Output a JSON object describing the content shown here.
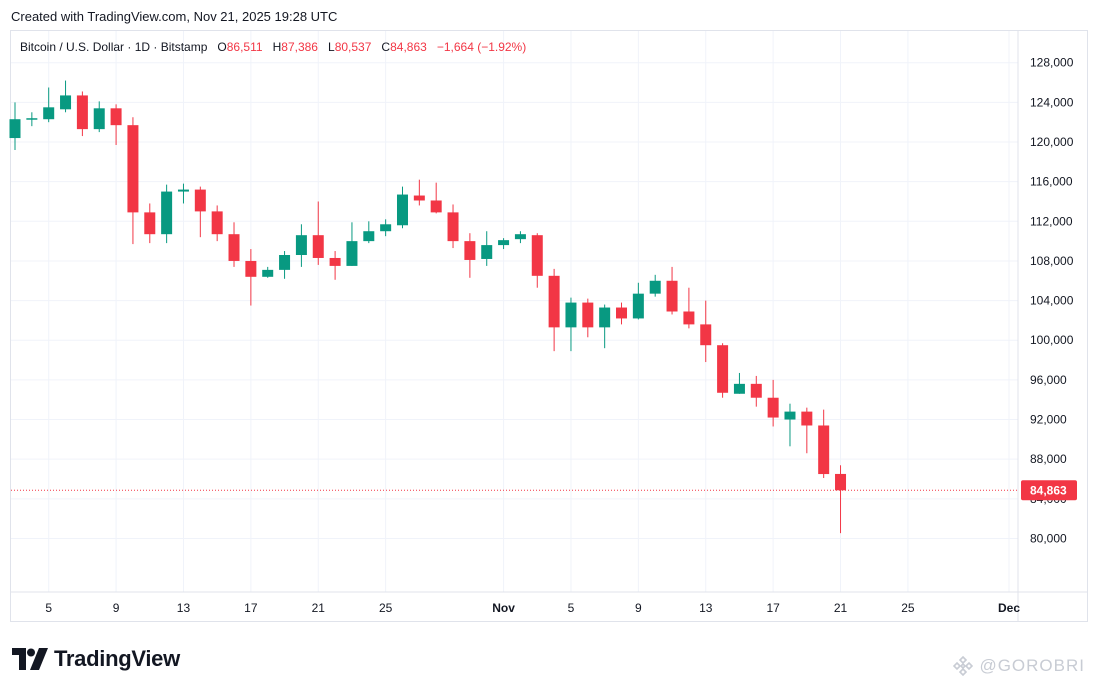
{
  "header": {
    "created": "Created with TradingView.com, Nov 21, 2025 19:28 UTC"
  },
  "legend": {
    "symbol": "Bitcoin / U.S. Dollar · 1D · Bitstamp",
    "open_label": "O",
    "open": "86,511",
    "high_label": "H",
    "high": "87,386",
    "low_label": "L",
    "low": "80,537",
    "close_label": "C",
    "close": "84,863",
    "change": "−1,664 (−1.92%)"
  },
  "brand": {
    "name": "TradingView"
  },
  "watermark": {
    "text": "@GOROBRI"
  },
  "colors": {
    "up": "#089981",
    "down": "#f23645",
    "grid": "#f0f3fa",
    "axis_text": "#131722"
  },
  "chart_data": {
    "type": "candlestick",
    "ylim": [
      74600,
      131200
    ],
    "y_ticks": [
      80000,
      84000,
      88000,
      92000,
      96000,
      100000,
      104000,
      108000,
      112000,
      116000,
      120000,
      124000,
      128000
    ],
    "y_tick_labels": [
      "80,000",
      "84,000",
      "88,000",
      "92,000",
      "96,000",
      "100,000",
      "104,000",
      "108,000",
      "112,000",
      "116,000",
      "120,000",
      "124,000",
      "128,000"
    ],
    "x_labels": [
      {
        "label": "5",
        "index": 2
      },
      {
        "label": "9",
        "index": 6
      },
      {
        "label": "13",
        "index": 10
      },
      {
        "label": "17",
        "index": 14
      },
      {
        "label": "21",
        "index": 18
      },
      {
        "label": "25",
        "index": 22
      },
      {
        "label": "Nov",
        "index": 29
      },
      {
        "label": "5",
        "index": 33
      },
      {
        "label": "9",
        "index": 37
      },
      {
        "label": "13",
        "index": 41
      },
      {
        "label": "17",
        "index": 45
      },
      {
        "label": "21",
        "index": 49
      },
      {
        "label": "25",
        "index": 53
      },
      {
        "label": "Dec",
        "index": 59
      }
    ],
    "x_index_first": 0,
    "x_index_last": 59,
    "last_price": 84863,
    "last_price_label": "84,863",
    "candles": [
      {
        "o": 120400,
        "h": 124000,
        "l": 119200,
        "c": 122300
      },
      {
        "o": 122300,
        "h": 123000,
        "l": 121600,
        "c": 122400
      },
      {
        "o": 122300,
        "h": 125500,
        "l": 122000,
        "c": 123500
      },
      {
        "o": 123300,
        "h": 126200,
        "l": 123000,
        "c": 124700
      },
      {
        "o": 124700,
        "h": 125100,
        "l": 120600,
        "c": 121300
      },
      {
        "o": 121300,
        "h": 124100,
        "l": 121000,
        "c": 123400
      },
      {
        "o": 123400,
        "h": 123800,
        "l": 119700,
        "c": 121700
      },
      {
        "o": 121700,
        "h": 122500,
        "l": 109700,
        "c": 112900
      },
      {
        "o": 112900,
        "h": 113800,
        "l": 109800,
        "c": 110700
      },
      {
        "o": 110700,
        "h": 115700,
        "l": 109800,
        "c": 115000
      },
      {
        "o": 115000,
        "h": 115800,
        "l": 113800,
        "c": 115200
      },
      {
        "o": 115200,
        "h": 115500,
        "l": 110400,
        "c": 113000
      },
      {
        "o": 113000,
        "h": 113600,
        "l": 110000,
        "c": 110700
      },
      {
        "o": 110700,
        "h": 111900,
        "l": 107400,
        "c": 108000
      },
      {
        "o": 108000,
        "h": 109200,
        "l": 103500,
        "c": 106400
      },
      {
        "o": 106400,
        "h": 107400,
        "l": 106300,
        "c": 107100
      },
      {
        "o": 107100,
        "h": 109000,
        "l": 106200,
        "c": 108600
      },
      {
        "o": 108600,
        "h": 111700,
        "l": 107400,
        "c": 110600
      },
      {
        "o": 110600,
        "h": 114000,
        "l": 107600,
        "c": 108300
      },
      {
        "o": 108300,
        "h": 109000,
        "l": 106100,
        "c": 107500
      },
      {
        "o": 107500,
        "h": 111900,
        "l": 107500,
        "c": 110000
      },
      {
        "o": 110000,
        "h": 112000,
        "l": 109800,
        "c": 111000
      },
      {
        "o": 111000,
        "h": 112200,
        "l": 110500,
        "c": 111700
      },
      {
        "o": 111600,
        "h": 115500,
        "l": 111300,
        "c": 114700
      },
      {
        "o": 114600,
        "h": 116200,
        "l": 113600,
        "c": 114100
      },
      {
        "o": 114100,
        "h": 115900,
        "l": 112800,
        "c": 112900
      },
      {
        "o": 112900,
        "h": 113700,
        "l": 109300,
        "c": 110000
      },
      {
        "o": 110000,
        "h": 110800,
        "l": 106300,
        "c": 108100
      },
      {
        "o": 108200,
        "h": 111000,
        "l": 107500,
        "c": 109600
      },
      {
        "o": 109600,
        "h": 110300,
        "l": 109200,
        "c": 110100
      },
      {
        "o": 110200,
        "h": 111000,
        "l": 109800,
        "c": 110700
      },
      {
        "o": 110600,
        "h": 110800,
        "l": 105300,
        "c": 106500
      },
      {
        "o": 106500,
        "h": 107200,
        "l": 98900,
        "c": 101300
      },
      {
        "o": 101300,
        "h": 104300,
        "l": 98900,
        "c": 103800
      },
      {
        "o": 103800,
        "h": 104200,
        "l": 100300,
        "c": 101300
      },
      {
        "o": 101300,
        "h": 103600,
        "l": 99200,
        "c": 103300
      },
      {
        "o": 103300,
        "h": 103800,
        "l": 101600,
        "c": 102200
      },
      {
        "o": 102200,
        "h": 105800,
        "l": 102100,
        "c": 104700
      },
      {
        "o": 104700,
        "h": 106600,
        "l": 104400,
        "c": 106000
      },
      {
        "o": 106000,
        "h": 107400,
        "l": 102600,
        "c": 102900
      },
      {
        "o": 102900,
        "h": 105300,
        "l": 101200,
        "c": 101600
      },
      {
        "o": 101600,
        "h": 104000,
        "l": 97800,
        "c": 99500
      },
      {
        "o": 99500,
        "h": 99700,
        "l": 94200,
        "c": 94700
      },
      {
        "o": 94600,
        "h": 96700,
        "l": 94600,
        "c": 95600
      },
      {
        "o": 95600,
        "h": 96400,
        "l": 93300,
        "c": 94200
      },
      {
        "o": 94200,
        "h": 96000,
        "l": 91300,
        "c": 92200
      },
      {
        "o": 92000,
        "h": 93600,
        "l": 89300,
        "c": 92800
      },
      {
        "o": 92800,
        "h": 93200,
        "l": 88600,
        "c": 91400
      },
      {
        "o": 91400,
        "h": 93000,
        "l": 86100,
        "c": 86500
      },
      {
        "o": 86511,
        "h": 87386,
        "l": 80537,
        "c": 84863
      }
    ]
  }
}
